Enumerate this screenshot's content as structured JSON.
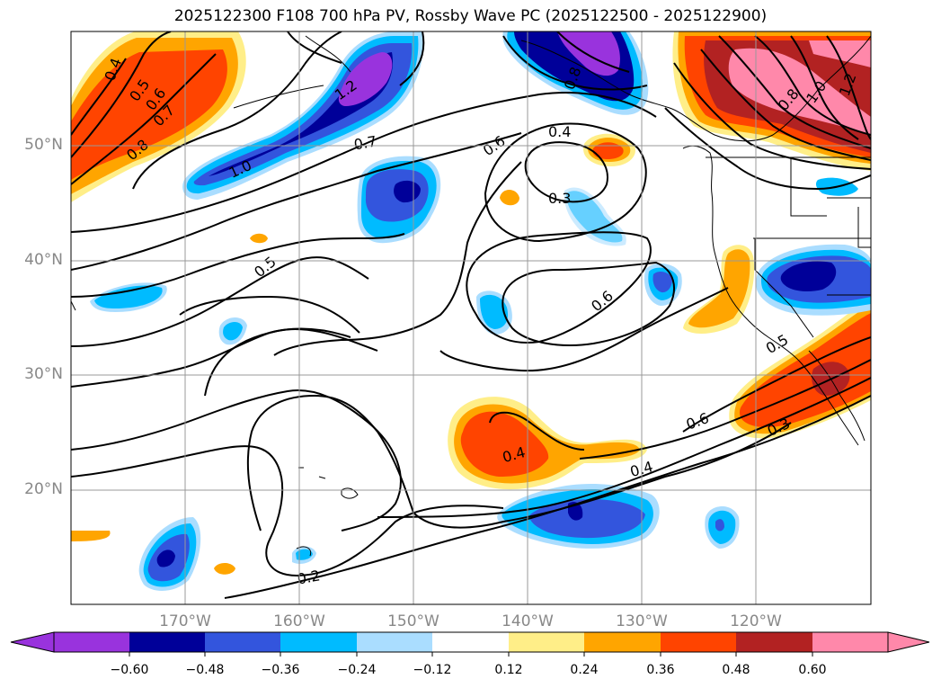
{
  "title": "2025122300 F108 700 hPa PV, Rossby Wave PC (2025122500 - 2025122900)",
  "map": {
    "projection": "cylindrical",
    "lon_range": [
      -180,
      -110
    ],
    "lat_range": [
      10,
      60
    ],
    "lat_ticks": [
      "50°N",
      "40°N",
      "30°N",
      "20°N"
    ],
    "lon_ticks": [
      "170°W",
      "160°W",
      "150°W",
      "140°W",
      "130°W",
      "120°W"
    ],
    "grid": true
  },
  "contours": {
    "color": "#000000",
    "labels": [
      "0.4",
      "0.5",
      "0.6",
      "0.7",
      "0.8",
      "1.2",
      "1.0",
      "0.7",
      "0.6",
      "0.4",
      "0.3",
      "0.5",
      "0.6",
      "0.8",
      "1.0",
      "1.2",
      "0.8",
      "0.6",
      "0.5",
      "0.3",
      "0.4",
      "0.4",
      "0.2"
    ]
  },
  "colorbar": {
    "tick_labels": [
      "−0.60",
      "−0.48",
      "−0.36",
      "−0.24",
      "−0.12",
      "0.12",
      "0.24",
      "0.36",
      "0.48",
      "0.60"
    ],
    "colors": [
      "#9933dd",
      "#000099",
      "#3355dd",
      "#00bbff",
      "#aaddff",
      "#ffffff",
      "#ffee88",
      "#ffa500",
      "#ff4400",
      "#b22222",
      "#ff88aa"
    ],
    "extend": "both"
  }
}
